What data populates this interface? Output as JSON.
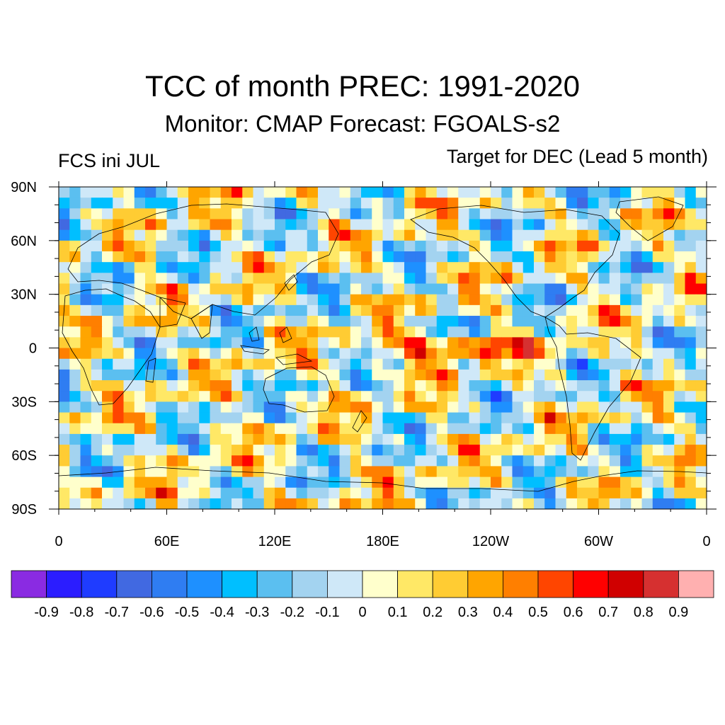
{
  "title": "TCC of month PREC: 1991-2020",
  "subtitle": "Monitor: CMAP   Forecast: FGOALS-s2",
  "left_label": "FCS ini JUL",
  "right_label": "Target for DEC (Lead 5 month)",
  "map": {
    "lon_ticks": [
      "0",
      "60E",
      "120E",
      "180E",
      "120W",
      "60W",
      "0"
    ],
    "lat_ticks": [
      "90N",
      "60N",
      "30N",
      "0",
      "30S",
      "60S",
      "90S"
    ],
    "lon_tick_values": [
      0,
      60,
      120,
      180,
      240,
      300,
      360
    ],
    "lat_tick_values": [
      90,
      60,
      30,
      0,
      -30,
      -60,
      -90
    ]
  },
  "colorbar": {
    "colors": [
      "#8a2be2",
      "#2b1dff",
      "#1f3cff",
      "#4169e1",
      "#2f7df2",
      "#1e90ff",
      "#00bfff",
      "#5bbff0",
      "#a3d3f0",
      "#cfe8f8",
      "#ffffcc",
      "#ffe866",
      "#ffcc33",
      "#ffa500",
      "#ff7f00",
      "#ff4500",
      "#ff0000",
      "#d00000",
      "#d63030",
      "#ffb0b0"
    ],
    "labels": [
      "-0.9",
      "-0.8",
      "-0.7",
      "-0.6",
      "-0.5",
      "-0.4",
      "-0.3",
      "-0.2",
      "-0.1",
      "0",
      "0.1",
      "0.2",
      "0.3",
      "0.4",
      "0.5",
      "0.6",
      "0.7",
      "0.8",
      "0.9"
    ]
  }
}
